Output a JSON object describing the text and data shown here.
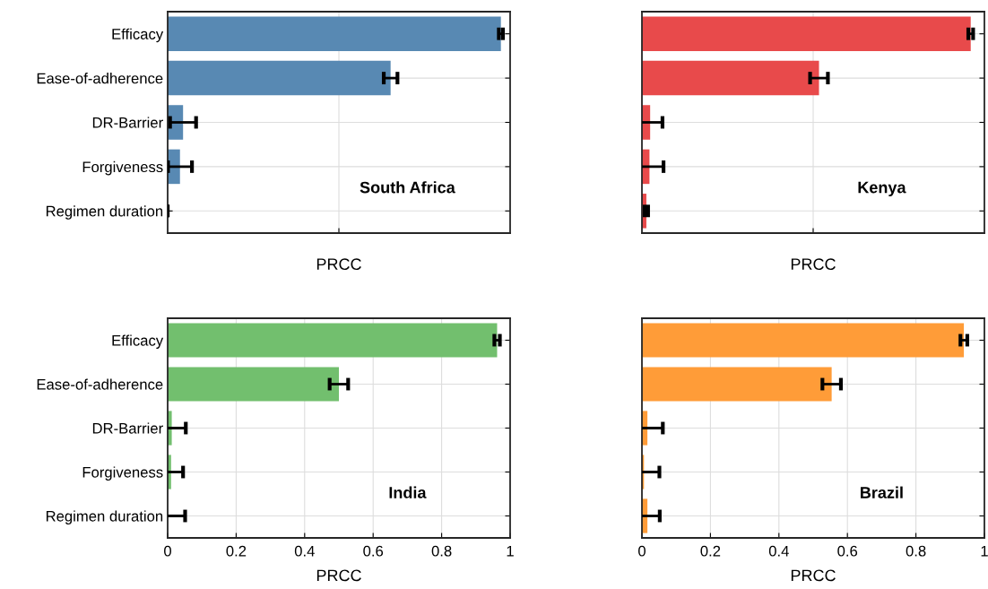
{
  "chart_data": [
    {
      "type": "bar",
      "orientation": "horizontal",
      "categories": [
        "Efficacy",
        "Ease-of-adherence",
        "DR-Barrier",
        "Forgiveness",
        "Regimen duration"
      ],
      "values": [
        0.973,
        0.651,
        0.045,
        0.036,
        0
      ],
      "errors": [
        0.006,
        0.02,
        0.038,
        0.035,
        null
      ],
      "color": "#5889b3",
      "xlim": [
        0,
        1
      ],
      "xticks": [
        {
          "value": 0.5,
          "label": null
        }
      ],
      "xlabel": "PRCC",
      "annotations": [
        "South Africa"
      ],
      "grid": true,
      "tick_labels": "y"
    },
    {
      "type": "bar",
      "orientation": "horizontal",
      "categories": [
        null,
        null,
        null,
        null,
        null
      ],
      "values": [
        0.96,
        0.517,
        0.024,
        0.022,
        0.013
      ],
      "errors": [
        0.007,
        0.026,
        0.036,
        0.041,
        0.005
      ],
      "color": "#e84a4b",
      "xlim": [
        0,
        1
      ],
      "xticks": [
        {
          "value": 0.5,
          "label": null
        }
      ],
      "xlabel": "PRCC",
      "annotations": [
        "Kenya"
      ],
      "grid": true,
      "tick_labels": false
    },
    {
      "type": "bar",
      "orientation": "horizontal",
      "categories": [
        "Efficacy",
        "Ease-of-adherence",
        "DR-Barrier",
        "Forgiveness",
        "Regimen duration"
      ],
      "values": [
        0.962,
        0.5,
        0.012,
        0.01,
        0
      ],
      "errors": [
        0.008,
        0.027,
        0.041,
        0.035,
        0.051
      ],
      "color": "#72bf6e",
      "xlim": [
        0,
        1
      ],
      "xticks": [
        0,
        0.2,
        0.4,
        0.6,
        0.8,
        1
      ],
      "xlabel": "PRCC",
      "annotations": [
        "India"
      ],
      "grid": true
    },
    {
      "type": "bar",
      "orientation": "horizontal",
      "categories": [
        null,
        null,
        null,
        null,
        null
      ],
      "values": [
        0.94,
        0.554,
        0.016,
        0.006,
        0.016
      ],
      "errors": [
        0.01,
        0.027,
        0.045,
        0.045,
        0.036
      ],
      "color": "#ff9c38",
      "xlim": [
        0,
        1
      ],
      "xticks": [
        0,
        0.2,
        0.4,
        0.6,
        0.8,
        1
      ],
      "xlabel": "PRCC",
      "annotations": [
        "Brazil"
      ],
      "grid": true,
      "tick_labels": "x"
    }
  ]
}
